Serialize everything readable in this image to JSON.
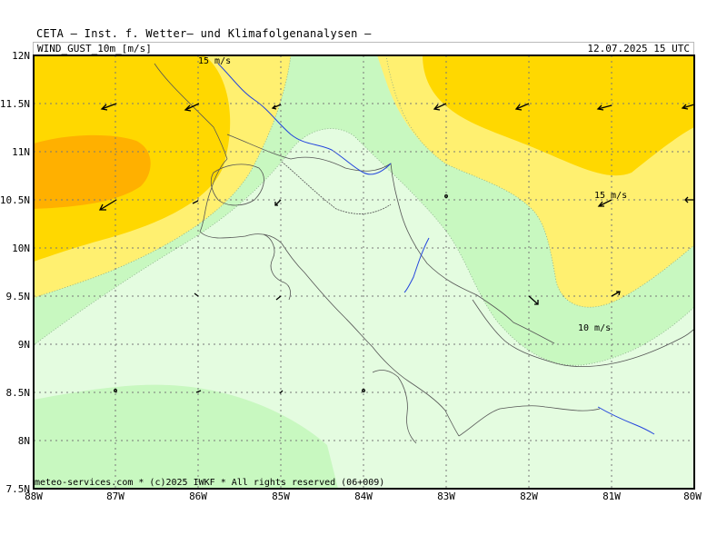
{
  "header": {
    "title": "CETA – Inst. f. Wetter– und Klimafolgenanalysen –",
    "parameter": "WIND_GUST_10m_[m/s]",
    "valid_time": "12.07.2025 15 UTC"
  },
  "footer": {
    "credit": "meteo-services.com * (c)2025 IWKF * All rights reserved (06+009)"
  },
  "axes": {
    "x_ticks": [
      "88W",
      "87W",
      "86W",
      "85W",
      "84W",
      "83W",
      "82W",
      "81W",
      "80W"
    ],
    "y_ticks": [
      "12N",
      "11.5N",
      "11N",
      "10.5N",
      "10N",
      "9.5N",
      "9N",
      "8.5N",
      "8N",
      "7.5N"
    ]
  },
  "contour_labels": [
    {
      "text": "15 m/s"
    },
    {
      "text": "15 m/s"
    },
    {
      "text": "10 m/s"
    }
  ],
  "colors": {
    "band_very_light": "#e4fce0",
    "band_light_green": "#c8f8c0",
    "band_yellow": "#fff070",
    "band_gold": "#ffd800",
    "band_orange": "#ffb000",
    "river": "#2244dd",
    "coast": "#555555",
    "grid": "#777777"
  }
}
